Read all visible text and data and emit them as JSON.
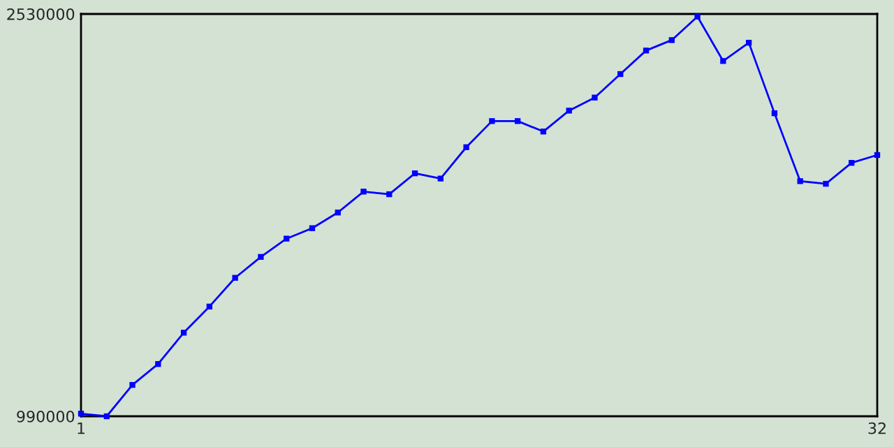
{
  "chart_data": {
    "type": "line",
    "x": [
      1,
      2,
      3,
      4,
      5,
      6,
      7,
      8,
      9,
      10,
      11,
      12,
      13,
      14,
      15,
      16,
      17,
      18,
      19,
      20,
      21,
      22,
      23,
      24,
      25,
      26,
      27,
      28,
      29,
      30,
      31,
      32
    ],
    "series": [
      {
        "color": "#0000ff",
        "values": [
          1000000,
          990000,
          1110000,
          1190000,
          1310000,
          1410000,
          1520000,
          1600000,
          1670000,
          1710000,
          1770000,
          1850000,
          1840000,
          1920000,
          1900000,
          2020000,
          2120000,
          2120000,
          2080000,
          2160000,
          2210000,
          2300000,
          2390000,
          2430000,
          2520000,
          2350000,
          2420000,
          2150000,
          1890000,
          1880000,
          1960000,
          1990000
        ]
      }
    ],
    "xlim": [
      1,
      32
    ],
    "ylim": [
      990000,
      2530000
    ],
    "xticks": [
      1,
      32
    ],
    "yticks": [
      990000,
      2530000
    ],
    "marker": "square",
    "line_style": "solid"
  }
}
